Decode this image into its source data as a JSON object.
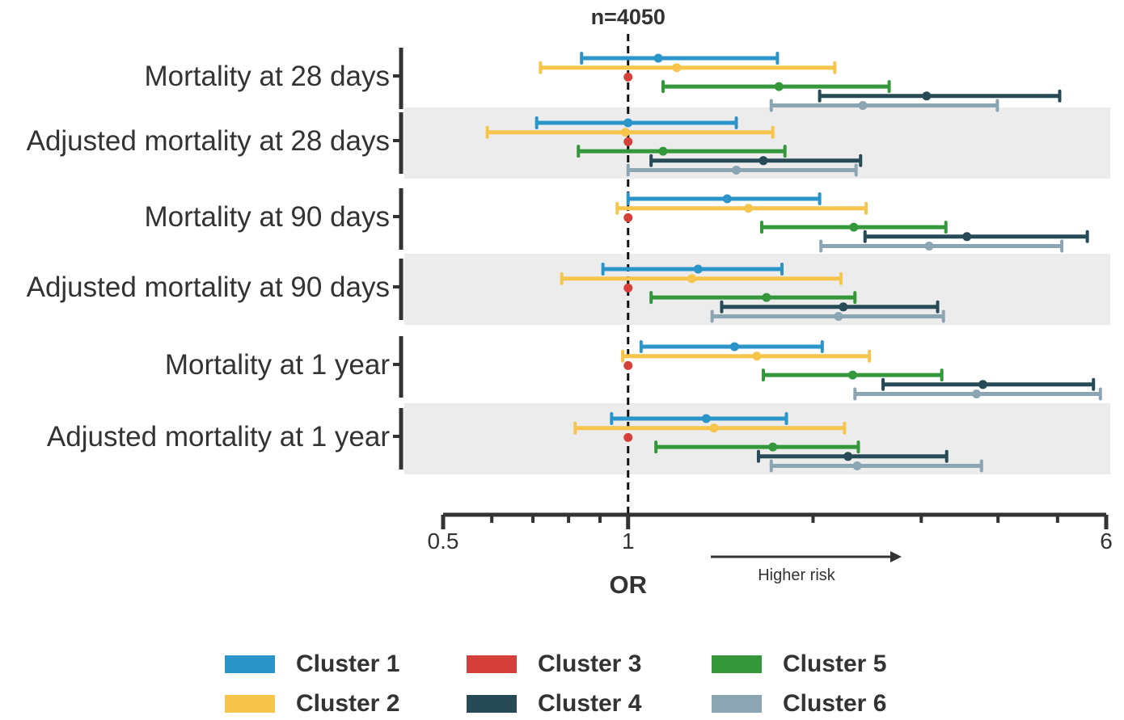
{
  "chart_data": {
    "type": "forest",
    "title": "n=4050",
    "xlabel": "OR",
    "x_scale": "log",
    "xlim": [
      0.5,
      6
    ],
    "x_tick_labels": [
      "0.5",
      "1",
      "6"
    ],
    "reference_line": 1,
    "annotation": "Higher risk",
    "categories": [
      "Mortality at 28 days",
      "Adjusted mortality at 28 days",
      "Mortality at 90 days",
      "Adjusted mortality at 90 days",
      "Mortality at 1 year",
      "Adjusted mortality at 1 year"
    ],
    "shaded_rows": [
      false,
      true,
      false,
      true,
      false,
      true
    ],
    "series": [
      {
        "name": "Cluster 1",
        "color": "#2b95c9",
        "points": [
          {
            "or": 1.12,
            "lo": 0.84,
            "hi": 1.75
          },
          {
            "or": 1.0,
            "lo": 0.71,
            "hi": 1.5
          },
          {
            "or": 1.45,
            "lo": 1.0,
            "hi": 2.05
          },
          {
            "or": 1.3,
            "lo": 0.91,
            "hi": 1.78
          },
          {
            "or": 1.49,
            "lo": 1.05,
            "hi": 2.07
          },
          {
            "or": 1.34,
            "lo": 0.94,
            "hi": 1.81
          }
        ]
      },
      {
        "name": "Cluster 2",
        "color": "#f7c44c",
        "points": [
          {
            "or": 1.2,
            "lo": 0.72,
            "hi": 2.17
          },
          {
            "or": 0.99,
            "lo": 0.59,
            "hi": 1.72
          },
          {
            "or": 1.57,
            "lo": 0.96,
            "hi": 2.44
          },
          {
            "or": 1.27,
            "lo": 0.78,
            "hi": 2.22
          },
          {
            "or": 1.62,
            "lo": 0.98,
            "hi": 2.47
          },
          {
            "or": 1.38,
            "lo": 0.82,
            "hi": 2.25
          }
        ]
      },
      {
        "name": "Cluster 3",
        "color": "#d6403a",
        "points": [
          {
            "or": 1.0
          },
          {
            "or": 1.0
          },
          {
            "or": 1.0
          },
          {
            "or": 1.0
          },
          {
            "or": 1.0
          },
          {
            "or": 1.0
          }
        ]
      },
      {
        "name": "Cluster 5",
        "color": "#34983b",
        "points": [
          {
            "or": 1.76,
            "lo": 1.14,
            "hi": 2.66
          },
          {
            "or": 1.14,
            "lo": 0.83,
            "hi": 1.8
          },
          {
            "or": 2.33,
            "lo": 1.65,
            "hi": 3.29
          },
          {
            "or": 1.68,
            "lo": 1.09,
            "hi": 2.34
          },
          {
            "or": 2.32,
            "lo": 1.66,
            "hi": 3.24
          },
          {
            "or": 1.72,
            "lo": 1.11,
            "hi": 2.37
          }
        ]
      },
      {
        "name": "Cluster 4",
        "color": "#264b57",
        "points": [
          {
            "or": 3.06,
            "lo": 2.05,
            "hi": 5.04
          },
          {
            "or": 1.66,
            "lo": 1.09,
            "hi": 2.39
          },
          {
            "or": 3.56,
            "lo": 2.43,
            "hi": 5.59
          },
          {
            "or": 2.24,
            "lo": 1.42,
            "hi": 3.19
          },
          {
            "or": 3.78,
            "lo": 2.6,
            "hi": 5.72
          },
          {
            "or": 2.28,
            "lo": 1.63,
            "hi": 3.3
          }
        ]
      },
      {
        "name": "Cluster 6",
        "color": "#8ba5b2",
        "points": [
          {
            "or": 2.41,
            "lo": 1.71,
            "hi": 3.99
          },
          {
            "or": 1.5,
            "lo": 1.0,
            "hi": 2.35
          },
          {
            "or": 3.09,
            "lo": 2.06,
            "hi": 5.08
          },
          {
            "or": 2.2,
            "lo": 1.37,
            "hi": 3.26
          },
          {
            "or": 3.69,
            "lo": 2.34,
            "hi": 5.87
          },
          {
            "or": 2.36,
            "lo": 1.71,
            "hi": 3.76
          }
        ]
      }
    ]
  },
  "legend": [
    {
      "label": "Cluster 1",
      "color": "#2b95c9"
    },
    {
      "label": "Cluster 2",
      "color": "#f7c44c"
    },
    {
      "label": "Cluster 3",
      "color": "#d6403a"
    },
    {
      "label": "Cluster 4",
      "color": "#264b57"
    },
    {
      "label": "Cluster 5",
      "color": "#34983b"
    },
    {
      "label": "Cluster 6",
      "color": "#8ba5b2"
    }
  ]
}
